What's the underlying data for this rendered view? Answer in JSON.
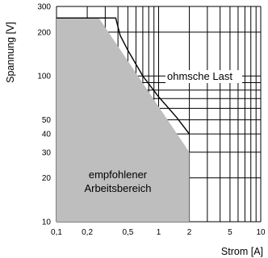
{
  "chart_data": {
    "type": "area",
    "x_scale": "log",
    "y_scale": "log",
    "xlabel": "Strom [A]",
    "ylabel": "Spannung [V]",
    "xlim": [
      0.1,
      10
    ],
    "ylim": [
      10,
      300
    ],
    "grid": true,
    "x_ticks": [
      {
        "value": 0.1,
        "label": "0,1"
      },
      {
        "value": 0.2,
        "label": "0,2"
      },
      {
        "value": 0.5,
        "label": "0,5"
      },
      {
        "value": 1,
        "label": "1"
      },
      {
        "value": 2,
        "label": "2"
      },
      {
        "value": 5,
        "label": "5"
      },
      {
        "value": 10,
        "label": "10"
      }
    ],
    "x_gridlines": [
      0.1,
      0.2,
      0.3,
      0.4,
      0.5,
      0.6,
      0.7,
      0.8,
      0.9,
      1,
      2,
      3,
      4,
      5,
      6,
      7,
      8,
      9,
      10
    ],
    "y_ticks": [
      {
        "value": 10,
        "label": "10"
      },
      {
        "value": 20,
        "label": "20"
      },
      {
        "value": 30,
        "label": "30"
      },
      {
        "value": 40,
        "label": "40"
      },
      {
        "value": 50,
        "label": "50"
      },
      {
        "value": 100,
        "label": "100"
      },
      {
        "value": 200,
        "label": "200"
      },
      {
        "value": 300,
        "label": "300"
      }
    ],
    "y_gridlines": [
      10,
      20,
      30,
      40,
      50,
      60,
      70,
      80,
      90,
      100,
      200,
      300
    ],
    "area_recommended": {
      "label": "empfohlener Arbeitsbereich",
      "label_lines": [
        "empfohlener",
        "Arbeitsbereich"
      ],
      "color": "#bebebe",
      "x": [
        0.1,
        0.26,
        2,
        2,
        0.1
      ],
      "y": [
        250,
        250,
        30,
        10,
        10
      ]
    },
    "series": [
      {
        "name": "ohmsche Last",
        "x": [
          0.1,
          0.38,
          0.42,
          0.5,
          0.7,
          1,
          1.5,
          2
        ],
        "y": [
          250,
          250,
          190,
          150,
          100,
          72,
          52,
          40
        ]
      }
    ]
  }
}
